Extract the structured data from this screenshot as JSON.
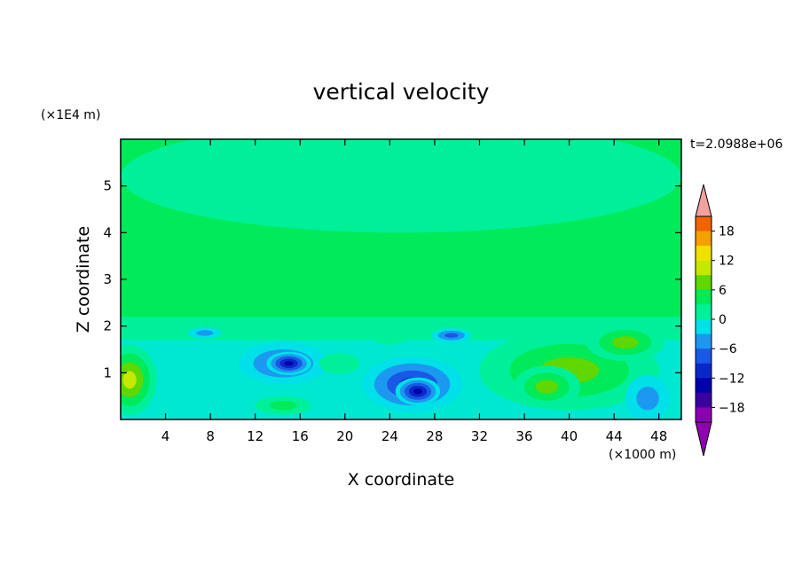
{
  "chart_data": {
    "type": "heatmap",
    "title": "vertical velocity",
    "xlabel": "X coordinate",
    "ylabel": "Z coordinate",
    "x_unit": "(×1000 m)",
    "y_unit": "(×1E4 m)",
    "time_label": "t=2.0988e+06",
    "xlim": [
      0,
      50
    ],
    "ylim": [
      0,
      6
    ],
    "x_ticks": [
      4,
      8,
      12,
      16,
      20,
      24,
      28,
      32,
      36,
      40,
      44,
      48
    ],
    "y_ticks": [
      1,
      2,
      3,
      4,
      5
    ],
    "colorbar": {
      "ticks": [
        18,
        12,
        6,
        0,
        -6,
        -12,
        -18
      ],
      "range": [
        -21,
        21
      ],
      "extend": "both"
    },
    "features": [
      {
        "x": 0.8,
        "z": 0.85,
        "rx": 2.4,
        "rz": 0.75,
        "value": 12
      },
      {
        "x": 40,
        "z": 1.05,
        "rx": 8,
        "rz": 0.85,
        "value": 9
      },
      {
        "x": 45,
        "z": 1.65,
        "rx": 3.5,
        "rz": 0.4,
        "value": 8
      },
      {
        "x": 38,
        "z": 0.7,
        "rx": 3,
        "rz": 0.45,
        "value": 10
      },
      {
        "x": 14.5,
        "z": 1.2,
        "rx": 4,
        "rz": 0.45,
        "value": -10
      },
      {
        "x": 15,
        "z": 1.2,
        "rx": 2,
        "rz": 0.25,
        "value": -15
      },
      {
        "x": 26,
        "z": 0.75,
        "rx": 4.5,
        "rz": 0.6,
        "value": -12
      },
      {
        "x": 26.5,
        "z": 0.6,
        "rx": 2,
        "rz": 0.3,
        "value": -16
      },
      {
        "x": 47,
        "z": 0.45,
        "rx": 2,
        "rz": 0.5,
        "value": -6
      },
      {
        "x": 14.5,
        "z": 0.3,
        "rx": 2.5,
        "rz": 0.2,
        "value": 6
      },
      {
        "x": 19.5,
        "z": 1.2,
        "rx": 1.8,
        "rz": 0.22,
        "value": 3
      },
      {
        "x": 29.5,
        "z": 1.8,
        "rx": 1.8,
        "rz": 0.15,
        "value": -8
      },
      {
        "x": 7.5,
        "z": 1.85,
        "rx": 1.5,
        "rz": 0.12,
        "value": -7
      },
      {
        "x": 24,
        "z": 1.75,
        "rx": 1.5,
        "rz": 0.15,
        "value": 4
      },
      {
        "x": 25,
        "z": 5.2,
        "rx": 25,
        "rz": 1.2,
        "value": 2
      }
    ]
  }
}
